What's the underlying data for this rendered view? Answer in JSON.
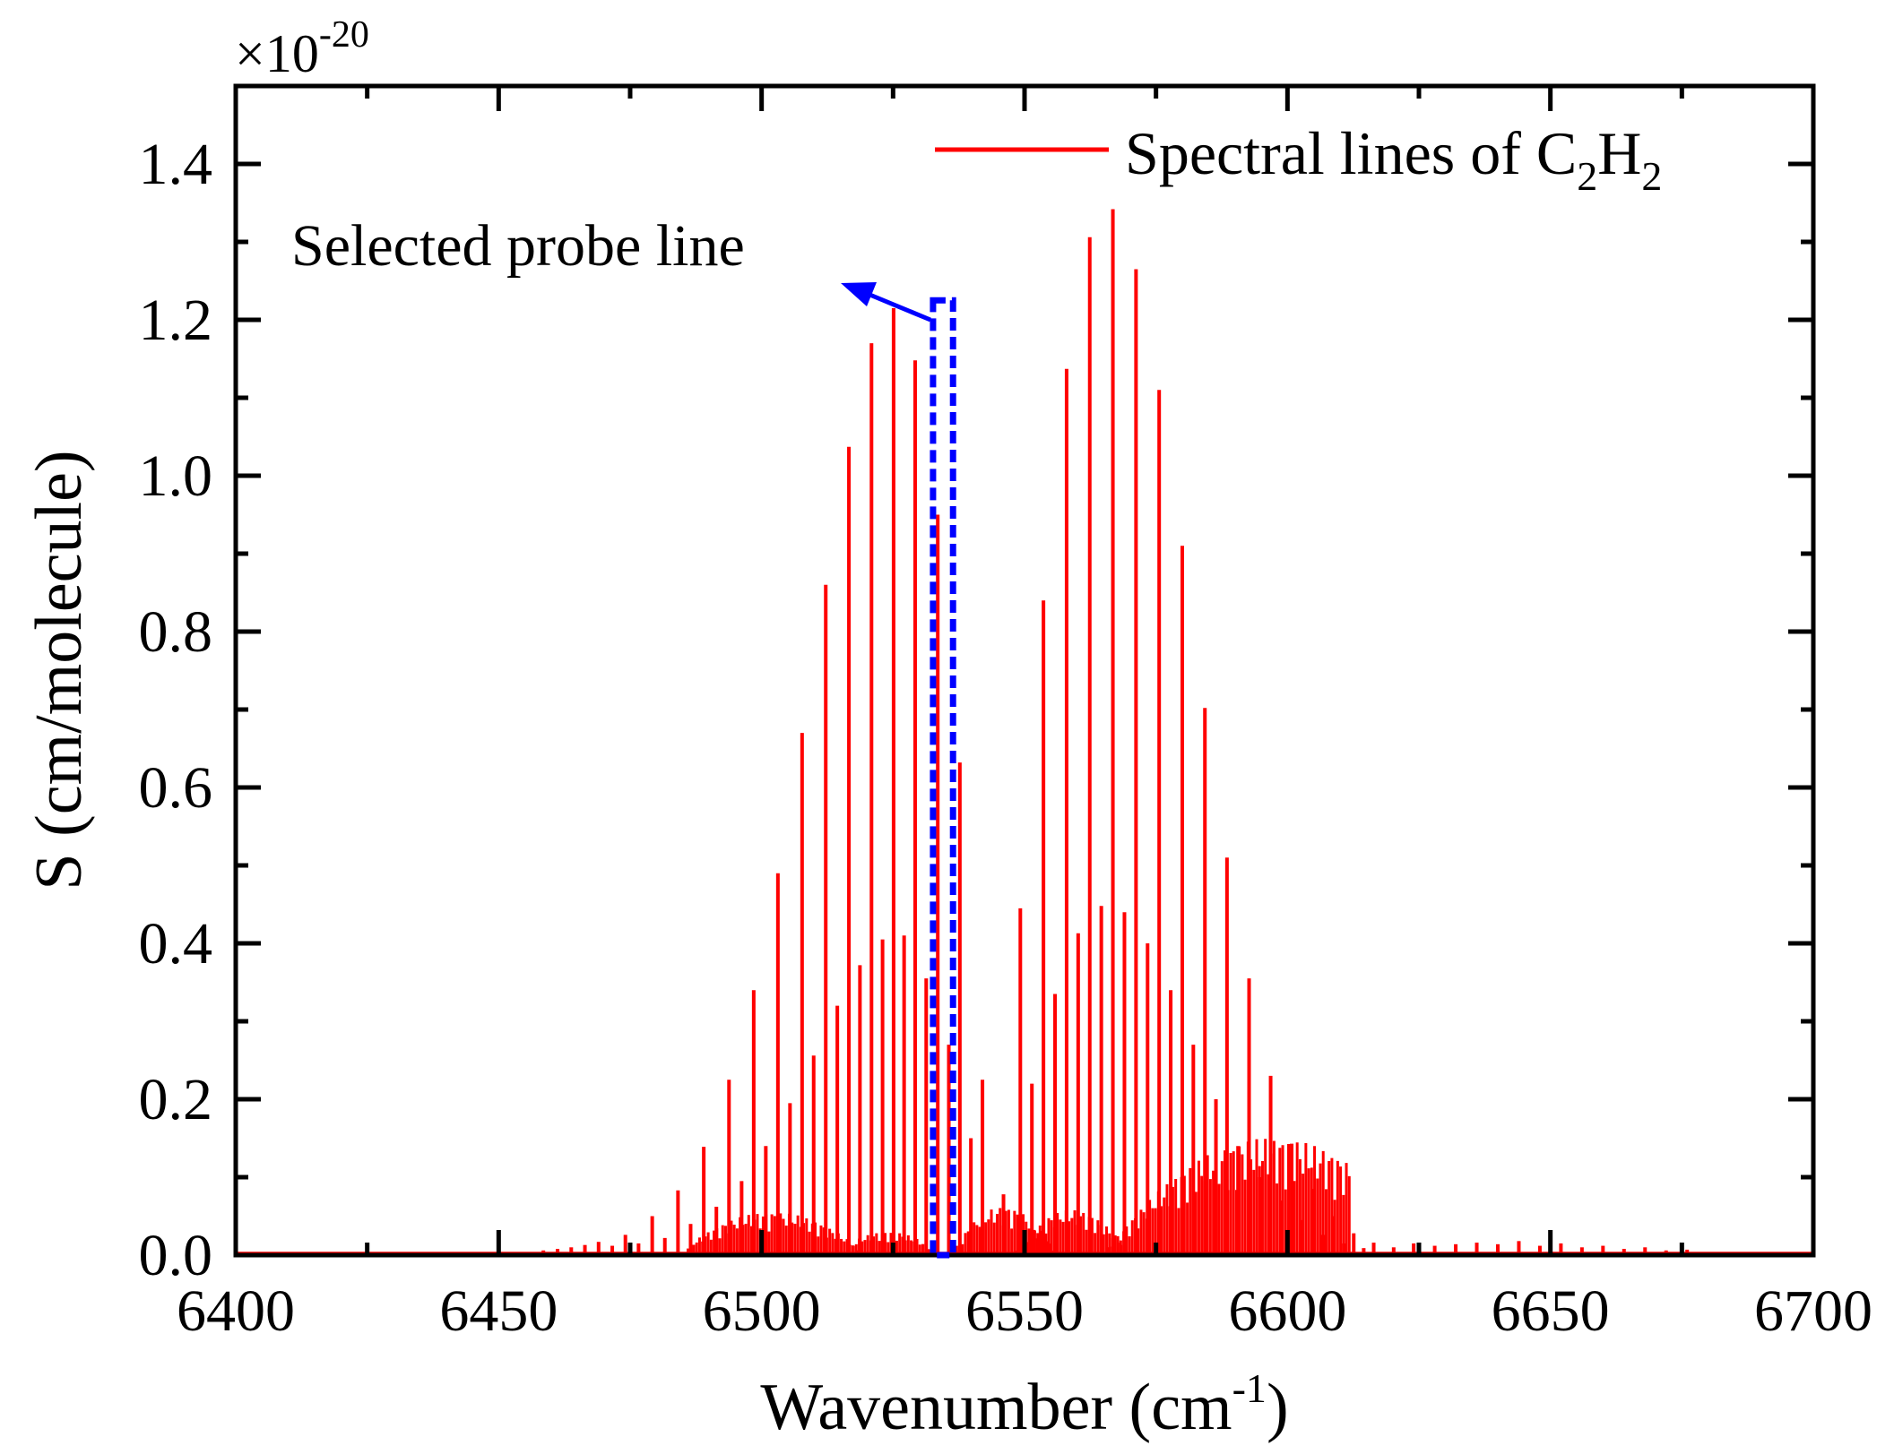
{
  "chart_data": {
    "type": "line",
    "title": "",
    "xlabel": "Wavenumber (cm",
    "xlabel_sup": "-1",
    "xlabel_tail": ")",
    "ylabel": "S (cm/molecule)",
    "y_multiplier_base": "×10",
    "y_multiplier_exp": "-20",
    "xlim": [
      6400,
      6700
    ],
    "ylim": [
      0,
      1.5
    ],
    "xticks": [
      "6400",
      "6450",
      "6500",
      "6550",
      "6600",
      "6650",
      "6700"
    ],
    "yticks": [
      "0.0",
      "0.2",
      "0.4",
      "0.6",
      "0.8",
      "1.0",
      "1.2",
      "1.4"
    ],
    "series_name": "Spectral lines of C2H2",
    "color": "#ff0000",
    "legend": {
      "text": "Spectral lines of C",
      "sub1": "2",
      "mid": "H",
      "sub2": "2",
      "placement": "top-right"
    },
    "annotation": {
      "text": "Selected probe line",
      "color": "#0000ff",
      "x_range": [
        6532.6,
        6536.4
      ],
      "y_top": 1.225
    },
    "baseline_range": [
      6452,
      6690
    ],
    "lines": [
      {
        "x": 6458.5,
        "y": 0.006
      },
      {
        "x": 6461.2,
        "y": 0.008
      },
      {
        "x": 6463.8,
        "y": 0.01
      },
      {
        "x": 6466.4,
        "y": 0.013
      },
      {
        "x": 6469.0,
        "y": 0.017
      },
      {
        "x": 6471.6,
        "y": 0.012
      },
      {
        "x": 6474.1,
        "y": 0.026
      },
      {
        "x": 6476.6,
        "y": 0.015
      },
      {
        "x": 6479.2,
        "y": 0.05
      },
      {
        "x": 6481.6,
        "y": 0.022
      },
      {
        "x": 6484.1,
        "y": 0.083
      },
      {
        "x": 6486.5,
        "y": 0.04
      },
      {
        "x": 6489.0,
        "y": 0.139
      },
      {
        "x": 6491.4,
        "y": 0.062
      },
      {
        "x": 6493.8,
        "y": 0.225
      },
      {
        "x": 6496.2,
        "y": 0.095
      },
      {
        "x": 6498.5,
        "y": 0.34
      },
      {
        "x": 6500.8,
        "y": 0.14
      },
      {
        "x": 6503.1,
        "y": 0.49
      },
      {
        "x": 6505.4,
        "y": 0.195
      },
      {
        "x": 6507.7,
        "y": 0.67
      },
      {
        "x": 6509.9,
        "y": 0.256
      },
      {
        "x": 6512.2,
        "y": 0.86
      },
      {
        "x": 6514.4,
        "y": 0.32
      },
      {
        "x": 6516.6,
        "y": 1.037
      },
      {
        "x": 6518.7,
        "y": 0.372
      },
      {
        "x": 6520.9,
        "y": 1.17
      },
      {
        "x": 6523.0,
        "y": 0.405
      },
      {
        "x": 6525.1,
        "y": 1.215
      },
      {
        "x": 6527.1,
        "y": 0.41
      },
      {
        "x": 6529.2,
        "y": 1.148
      },
      {
        "x": 6531.3,
        "y": 0.355
      },
      {
        "x": 6533.5,
        "y": 0.95
      },
      {
        "x": 6535.6,
        "y": 0.27
      },
      {
        "x": 6537.7,
        "y": 0.632
      },
      {
        "x": 6539.8,
        "y": 0.15
      },
      {
        "x": 6542.0,
        "y": 0.225
      },
      {
        "x": 6546.0,
        "y": 0.078
      },
      {
        "x": 6549.2,
        "y": 0.445
      },
      {
        "x": 6551.4,
        "y": 0.22
      },
      {
        "x": 6553.6,
        "y": 0.84
      },
      {
        "x": 6555.8,
        "y": 0.335
      },
      {
        "x": 6558.0,
        "y": 1.137
      },
      {
        "x": 6560.2,
        "y": 0.413
      },
      {
        "x": 6562.4,
        "y": 1.306
      },
      {
        "x": 6564.6,
        "y": 0.448
      },
      {
        "x": 6566.8,
        "y": 1.342
      },
      {
        "x": 6569.0,
        "y": 0.44
      },
      {
        "x": 6571.2,
        "y": 1.265
      },
      {
        "x": 6573.4,
        "y": 0.4
      },
      {
        "x": 6575.6,
        "y": 1.11
      },
      {
        "x": 6577.8,
        "y": 0.34
      },
      {
        "x": 6580.0,
        "y": 0.91
      },
      {
        "x": 6582.1,
        "y": 0.27
      },
      {
        "x": 6584.3,
        "y": 0.702
      },
      {
        "x": 6586.4,
        "y": 0.2
      },
      {
        "x": 6588.5,
        "y": 0.51
      },
      {
        "x": 6590.6,
        "y": 0.14
      },
      {
        "x": 6592.7,
        "y": 0.355
      },
      {
        "x": 6594.8,
        "y": 0.1
      },
      {
        "x": 6596.8,
        "y": 0.23
      },
      {
        "x": 6598.8,
        "y": 0.07
      },
      {
        "x": 6600.8,
        "y": 0.143
      },
      {
        "x": 6602.8,
        "y": 0.045
      },
      {
        "x": 6604.8,
        "y": 0.085
      },
      {
        "x": 6606.8,
        "y": 0.026
      },
      {
        "x": 6608.7,
        "y": 0.05
      },
      {
        "x": 6610.7,
        "y": 0.015
      },
      {
        "x": 6612.6,
        "y": 0.028
      },
      {
        "x": 6614.5,
        "y": 0.009
      },
      {
        "x": 6616.4,
        "y": 0.016
      },
      {
        "x": 6620.2,
        "y": 0.01
      },
      {
        "x": 6624.0,
        "y": 0.015
      },
      {
        "x": 6628.0,
        "y": 0.012
      },
      {
        "x": 6632.0,
        "y": 0.014
      },
      {
        "x": 6636.0,
        "y": 0.016
      },
      {
        "x": 6640.0,
        "y": 0.014
      },
      {
        "x": 6644.0,
        "y": 0.018
      },
      {
        "x": 6648.0,
        "y": 0.012
      },
      {
        "x": 6652.0,
        "y": 0.015
      },
      {
        "x": 6656.0,
        "y": 0.01
      },
      {
        "x": 6660.0,
        "y": 0.012
      },
      {
        "x": 6664.0,
        "y": 0.008
      },
      {
        "x": 6668.0,
        "y": 0.01
      },
      {
        "x": 6672.0,
        "y": 0.006
      },
      {
        "x": 6676.0,
        "y": 0.007
      },
      {
        "x": 6680.0,
        "y": 0.004
      }
    ],
    "hot_bands": [
      {
        "x_range": [
          6486,
          6520
        ],
        "peak_x": 6502,
        "peak_y": 0.055
      },
      {
        "x_range": [
          6518,
          6534
        ],
        "peak_x": 6524,
        "peak_y": 0.03
      },
      {
        "x_range": [
          6536,
          6556
        ],
        "peak_x": 6546,
        "peak_y": 0.062
      },
      {
        "x_range": [
          6548,
          6570
        ],
        "peak_x": 6559,
        "peak_y": 0.058
      },
      {
        "x_range": [
          6565,
          6612
        ],
        "peak_x": 6597,
        "peak_y": 0.15
      }
    ]
  }
}
